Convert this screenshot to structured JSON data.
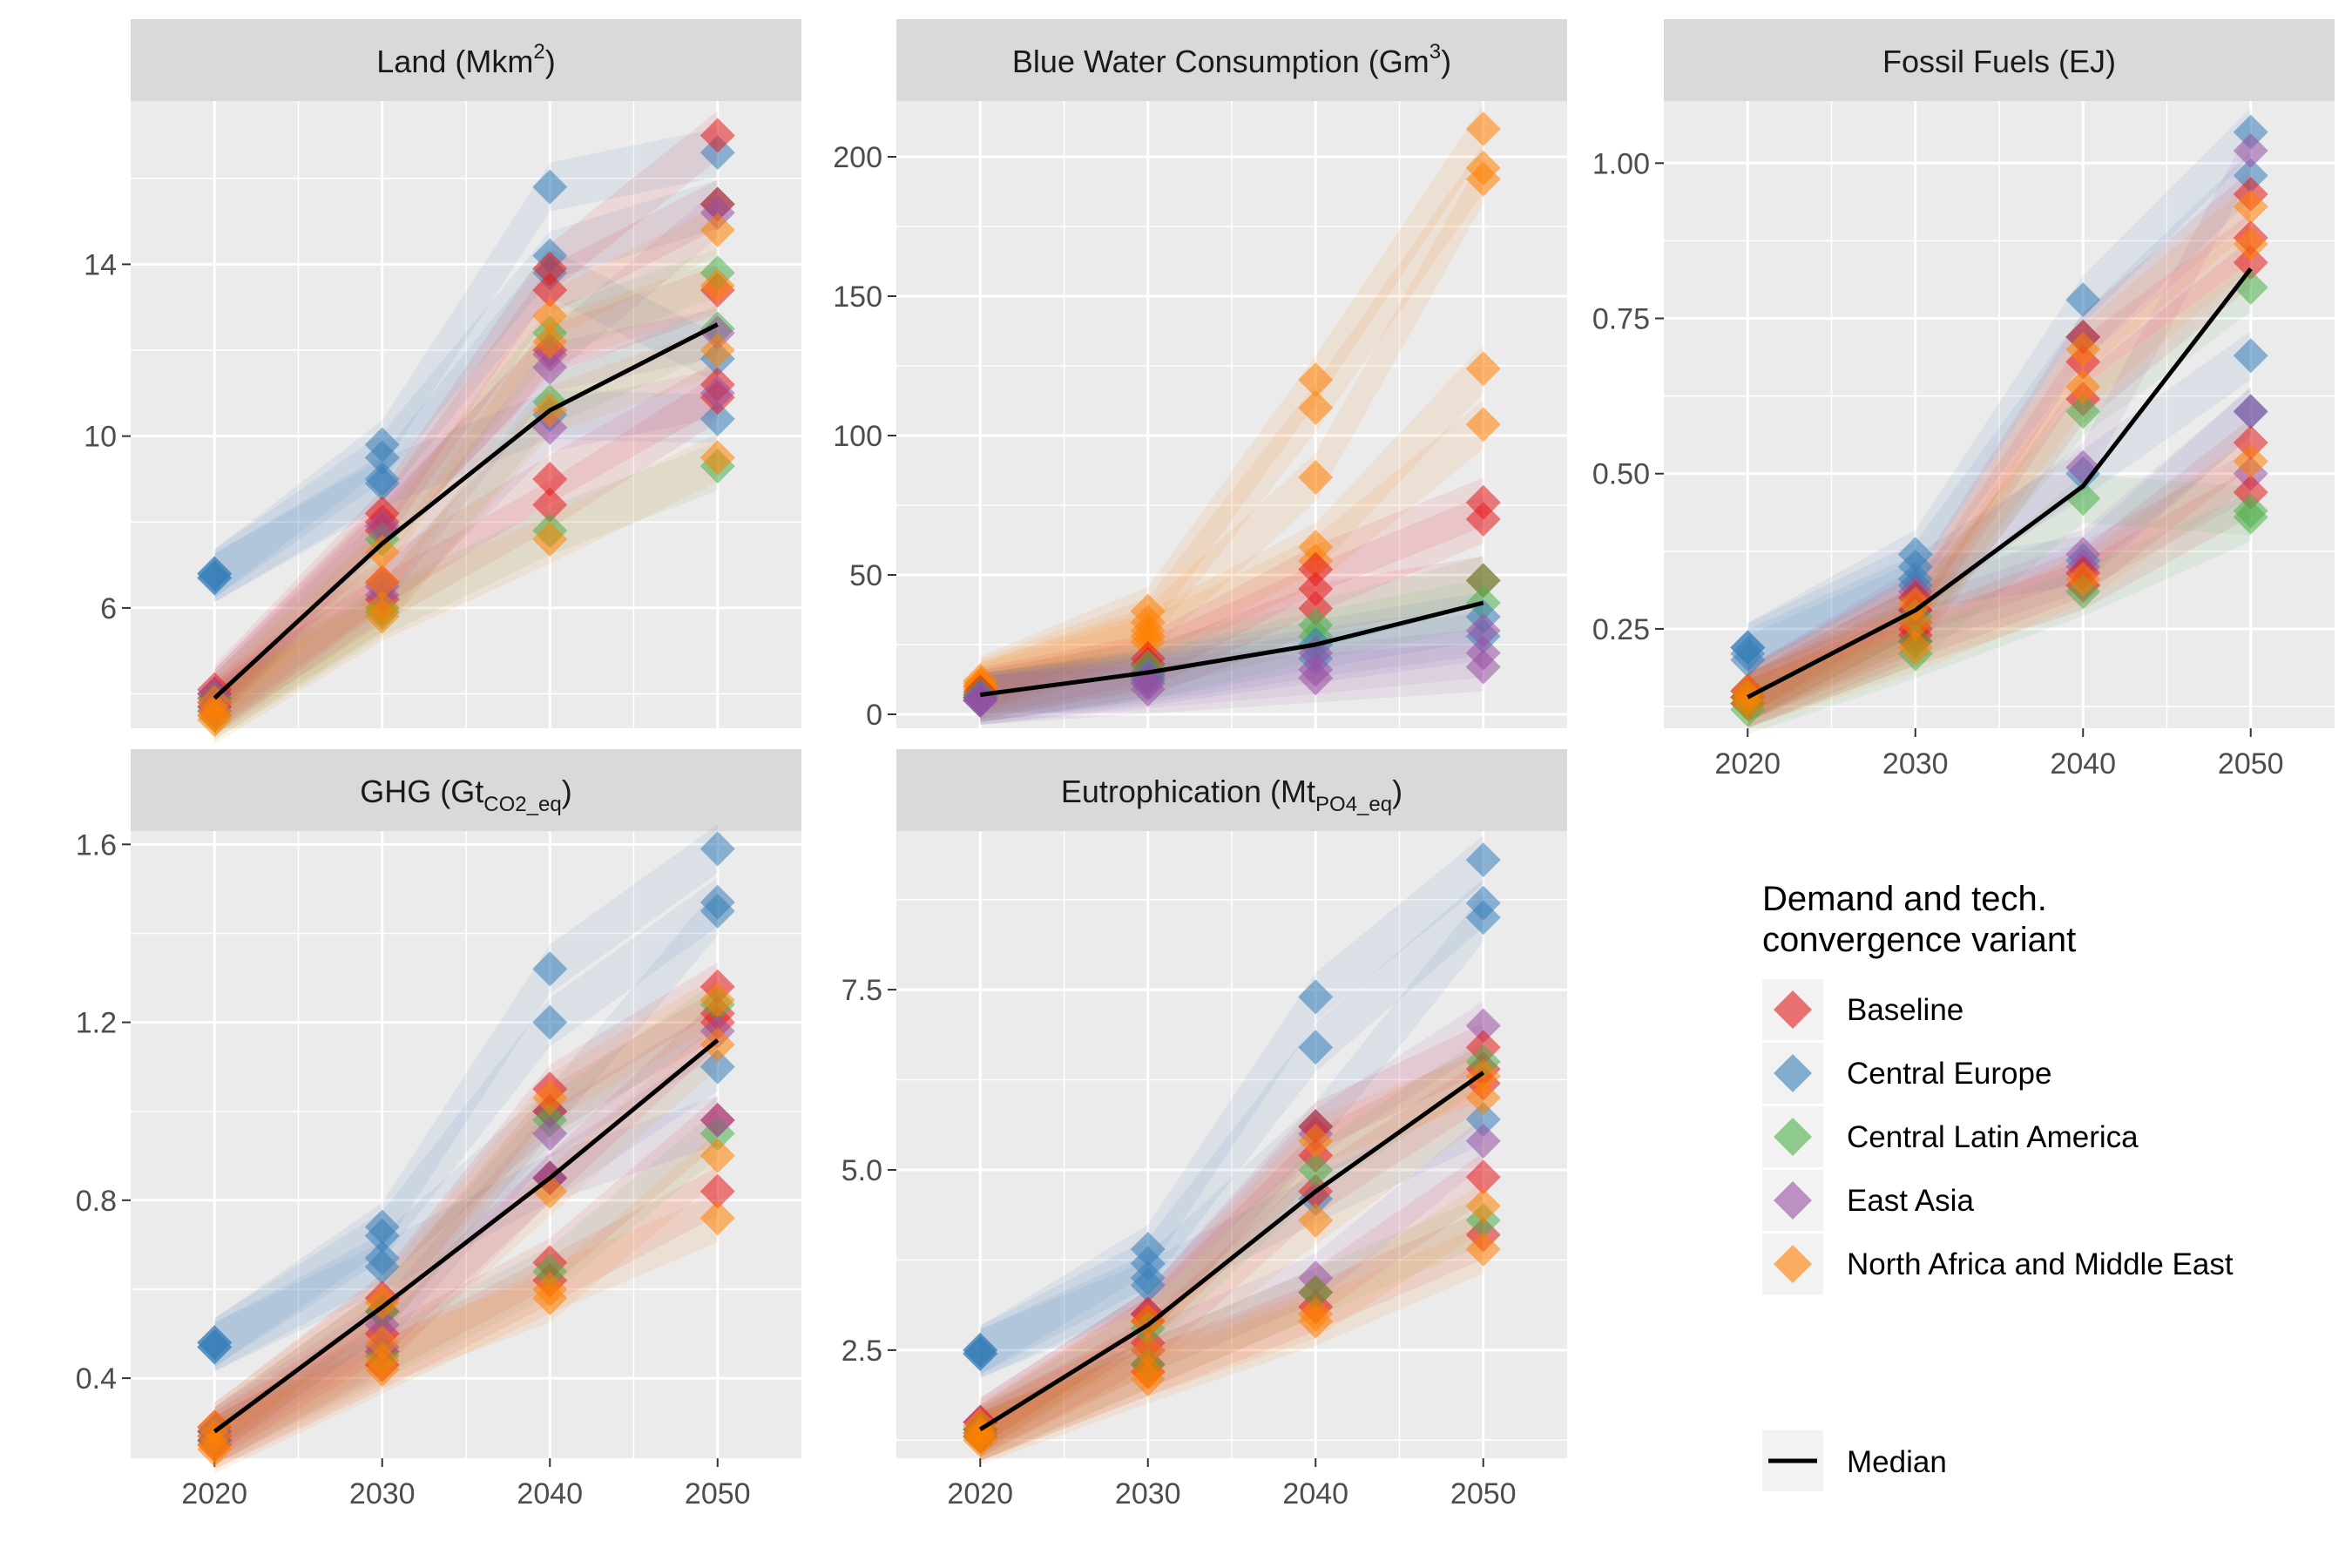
{
  "colors": {
    "Baseline": "#E41A1C",
    "Central Europe": "#377EB8",
    "Central Latin America": "#4DAF4A",
    "East Asia": "#984EA3",
    "North Africa and Middle East": "#FF7F00",
    "median": "#000000",
    "panel_bg": "#EBEBEB",
    "strip_bg": "#D9D9D9",
    "grid": "#FFFFFF",
    "axis_text": "#4D4D4D"
  },
  "legend": {
    "title_line1": "Demand and tech.",
    "title_line2": "convergence variant",
    "items": [
      "Baseline",
      "Central Europe",
      "Central Latin America",
      "East Asia",
      "North Africa and Middle East"
    ],
    "median_label": "Median"
  },
  "chart_data": [
    {
      "type": "line",
      "title": "Land (Mkm²)",
      "title_main": "Land (Mkm",
      "title_sup": "2",
      "title_tail": ")",
      "x": [
        2020,
        2030,
        2040,
        2050
      ],
      "ylim": [
        3.2,
        17.8
      ],
      "yticks": [
        6,
        10,
        14
      ],
      "ytick_labels": [
        "6",
        "10",
        "14"
      ],
      "median": [
        3.9,
        7.5,
        10.6,
        12.6
      ],
      "series": [
        {
          "variant": "Central Europe",
          "values": [
            6.8,
            9.8,
            15.8,
            16.6
          ]
        },
        {
          "variant": "Central Europe",
          "values": [
            6.8,
            9.5,
            14.2,
            15.4
          ]
        },
        {
          "variant": "Central Europe",
          "values": [
            6.7,
            9.0,
            13.8,
            11.8
          ]
        },
        {
          "variant": "Central Europe",
          "values": [
            6.7,
            8.9,
            10.5,
            10.4
          ]
        },
        {
          "variant": "Baseline",
          "values": [
            4.1,
            8.2,
            13.9,
            17.0
          ]
        },
        {
          "variant": "Baseline",
          "values": [
            4.0,
            8.0,
            13.4,
            15.4
          ]
        },
        {
          "variant": "Baseline",
          "values": [
            3.9,
            7.8,
            12.0,
            13.4
          ]
        },
        {
          "variant": "Baseline",
          "values": [
            3.8,
            6.6,
            9.0,
            11.2
          ]
        },
        {
          "variant": "Baseline",
          "values": [
            3.7,
            6.2,
            8.4,
            10.9
          ]
        },
        {
          "variant": "Central Latin America",
          "values": [
            3.9,
            7.6,
            12.4,
            13.8
          ]
        },
        {
          "variant": "Central Latin America",
          "values": [
            3.6,
            6.0,
            10.8,
            12.5
          ]
        },
        {
          "variant": "Central Latin America",
          "values": [
            3.5,
            5.9,
            7.8,
            9.3
          ]
        },
        {
          "variant": "East Asia",
          "values": [
            4.0,
            7.9,
            11.9,
            15.2
          ]
        },
        {
          "variant": "East Asia",
          "values": [
            3.7,
            6.5,
            11.6,
            12.4
          ]
        },
        {
          "variant": "East Asia",
          "values": [
            3.6,
            6.3,
            10.2,
            11.0
          ]
        },
        {
          "variant": "North Africa and Middle East",
          "values": [
            3.8,
            7.3,
            12.8,
            14.8
          ]
        },
        {
          "variant": "North Africa and Middle East",
          "values": [
            3.6,
            6.6,
            12.2,
            13.5
          ]
        },
        {
          "variant": "North Africa and Middle East",
          "values": [
            3.5,
            6.0,
            10.6,
            12.0
          ]
        },
        {
          "variant": "North Africa and Middle East",
          "values": [
            3.4,
            5.8,
            7.6,
            9.5
          ]
        }
      ]
    },
    {
      "type": "line",
      "title": "Blue Water Consumption (Gm³)",
      "title_main": "Blue Water Consumption (Gm",
      "title_sup": "3",
      "title_tail": ")",
      "x": [
        2020,
        2030,
        2040,
        2050
      ],
      "ylim": [
        -5,
        220
      ],
      "yticks": [
        0,
        50,
        100,
        150,
        200
      ],
      "ytick_labels": [
        "0",
        "50",
        "100",
        "150",
        "200"
      ],
      "median": [
        7,
        15,
        25,
        40
      ],
      "series": [
        {
          "variant": "North Africa and Middle East",
          "values": [
            12,
            37,
            120,
            210
          ]
        },
        {
          "variant": "North Africa and Middle East",
          "values": [
            11,
            33,
            110,
            196
          ]
        },
        {
          "variant": "North Africa and Middle East",
          "values": [
            10,
            30,
            85,
            192
          ]
        },
        {
          "variant": "North Africa and Middle East",
          "values": [
            10,
            28,
            60,
            124
          ]
        },
        {
          "variant": "North Africa and Middle East",
          "values": [
            9,
            26,
            55,
            104
          ]
        },
        {
          "variant": "Baseline",
          "values": [
            8,
            20,
            52,
            76
          ]
        },
        {
          "variant": "Baseline",
          "values": [
            7,
            18,
            45,
            70
          ]
        },
        {
          "variant": "Baseline",
          "values": [
            6,
            15,
            38,
            48
          ]
        },
        {
          "variant": "Central Latin America",
          "values": [
            7,
            17,
            32,
            48
          ]
        },
        {
          "variant": "Central Latin America",
          "values": [
            6,
            14,
            28,
            40
          ]
        },
        {
          "variant": "Central Europe",
          "values": [
            6,
            14,
            25,
            35
          ]
        },
        {
          "variant": "Central Europe",
          "values": [
            5,
            12,
            20,
            28
          ]
        },
        {
          "variant": "East Asia",
          "values": [
            6,
            13,
            22,
            30
          ]
        },
        {
          "variant": "East Asia",
          "values": [
            5,
            11,
            16,
            22
          ]
        },
        {
          "variant": "East Asia",
          "values": [
            5,
            9,
            13,
            17
          ]
        }
      ]
    },
    {
      "type": "line",
      "title": "Fossil Fuels (EJ)",
      "title_main": "Fossil Fuels (EJ)",
      "title_sup": "",
      "title_tail": "",
      "x": [
        2020,
        2030,
        2040,
        2050
      ],
      "ylim": [
        0.09,
        1.1
      ],
      "yticks": [
        0.25,
        0.5,
        0.75,
        1.0
      ],
      "ytick_labels": [
        "0.25",
        "0.50",
        "0.75",
        "1.00"
      ],
      "median": [
        0.14,
        0.28,
        0.48,
        0.83
      ],
      "series": [
        {
          "variant": "Central Europe",
          "values": [
            0.22,
            0.37,
            0.78,
            1.05
          ]
        },
        {
          "variant": "Central Europe",
          "values": [
            0.22,
            0.35,
            0.72,
            0.98
          ]
        },
        {
          "variant": "Central Europe",
          "values": [
            0.21,
            0.33,
            0.5,
            0.69
          ]
        },
        {
          "variant": "Central Europe",
          "values": [
            0.2,
            0.32,
            0.36,
            0.6
          ]
        },
        {
          "variant": "East Asia",
          "values": [
            0.15,
            0.31,
            0.51,
            1.02
          ]
        },
        {
          "variant": "East Asia",
          "values": [
            0.14,
            0.28,
            0.37,
            0.6
          ]
        },
        {
          "variant": "East Asia",
          "values": [
            0.14,
            0.26,
            0.35,
            0.5
          ]
        },
        {
          "variant": "Baseline",
          "values": [
            0.15,
            0.3,
            0.72,
            0.95
          ]
        },
        {
          "variant": "Baseline",
          "values": [
            0.14,
            0.28,
            0.68,
            0.88
          ]
        },
        {
          "variant": "Baseline",
          "values": [
            0.14,
            0.25,
            0.62,
            0.84
          ]
        },
        {
          "variant": "Baseline",
          "values": [
            0.13,
            0.24,
            0.34,
            0.55
          ]
        },
        {
          "variant": "Baseline",
          "values": [
            0.13,
            0.23,
            0.32,
            0.47
          ]
        },
        {
          "variant": "Central Latin America",
          "values": [
            0.14,
            0.27,
            0.6,
            0.8
          ]
        },
        {
          "variant": "Central Latin America",
          "values": [
            0.13,
            0.23,
            0.46,
            0.44
          ]
        },
        {
          "variant": "Central Latin America",
          "values": [
            0.12,
            0.21,
            0.31,
            0.43
          ]
        },
        {
          "variant": "North Africa and Middle East",
          "values": [
            0.15,
            0.29,
            0.7,
            0.93
          ]
        },
        {
          "variant": "North Africa and Middle East",
          "values": [
            0.14,
            0.26,
            0.64,
            0.87
          ]
        },
        {
          "variant": "North Africa and Middle East",
          "values": [
            0.13,
            0.22,
            0.33,
            0.52
          ]
        }
      ]
    },
    {
      "type": "line",
      "title": "GHG (Gt CO2_eq)",
      "title_main": "GHG (Gt",
      "title_sub": "CO2_eq",
      "title_tail": ")",
      "x": [
        2020,
        2030,
        2040,
        2050
      ],
      "ylim": [
        0.22,
        1.63
      ],
      "yticks": [
        0.4,
        0.8,
        1.2,
        1.6
      ],
      "ytick_labels": [
        "0.4",
        "0.8",
        "1.2",
        "1.6"
      ],
      "median": [
        0.28,
        0.56,
        0.85,
        1.16
      ],
      "series": [
        {
          "variant": "Central Europe",
          "values": [
            0.48,
            0.74,
            1.32,
            1.59
          ]
        },
        {
          "variant": "Central Europe",
          "values": [
            0.48,
            0.72,
            1.2,
            1.47
          ]
        },
        {
          "variant": "Central Europe",
          "values": [
            0.47,
            0.67,
            1.0,
            1.45
          ]
        },
        {
          "variant": "Central Europe",
          "values": [
            0.47,
            0.65,
            0.85,
            1.1
          ]
        },
        {
          "variant": "Baseline",
          "values": [
            0.29,
            0.58,
            1.05,
            1.28
          ]
        },
        {
          "variant": "Baseline",
          "values": [
            0.28,
            0.55,
            1.0,
            1.22
          ]
        },
        {
          "variant": "Baseline",
          "values": [
            0.27,
            0.5,
            0.85,
            1.2
          ]
        },
        {
          "variant": "Baseline",
          "values": [
            0.26,
            0.46,
            0.66,
            0.98
          ]
        },
        {
          "variant": "Baseline",
          "values": [
            0.25,
            0.43,
            0.62,
            0.82
          ]
        },
        {
          "variant": "Central Latin America",
          "values": [
            0.28,
            0.55,
            0.98,
            1.24
          ]
        },
        {
          "variant": "Central Latin America",
          "values": [
            0.26,
            0.45,
            0.64,
            0.95
          ]
        },
        {
          "variant": "East Asia",
          "values": [
            0.28,
            0.52,
            0.95,
            1.18
          ]
        },
        {
          "variant": "East Asia",
          "values": [
            0.26,
            0.47,
            0.85,
            0.98
          ]
        },
        {
          "variant": "North Africa and Middle East",
          "values": [
            0.29,
            0.57,
            1.03,
            1.25
          ]
        },
        {
          "variant": "North Africa and Middle East",
          "values": [
            0.27,
            0.48,
            0.82,
            1.15
          ]
        },
        {
          "variant": "North Africa and Middle East",
          "values": [
            0.25,
            0.44,
            0.58,
            0.9
          ]
        },
        {
          "variant": "North Africa and Middle East",
          "values": [
            0.24,
            0.42,
            0.6,
            0.76
          ]
        }
      ]
    },
    {
      "type": "line",
      "title": "Eutrophication (Mt PO4_eq)",
      "title_main": "Eutrophication (Mt",
      "title_sub": "PO4_eq",
      "title_tail": ")",
      "x": [
        2020,
        2030,
        2040,
        2050
      ],
      "ylim": [
        1.0,
        9.7
      ],
      "yticks": [
        2.5,
        5.0,
        7.5
      ],
      "ytick_labels": [
        "2.5",
        "5.0",
        "7.5"
      ],
      "median": [
        1.4,
        2.85,
        4.7,
        6.35
      ],
      "series": [
        {
          "variant": "Central Europe",
          "values": [
            2.5,
            3.9,
            7.4,
            9.3
          ]
        },
        {
          "variant": "Central Europe",
          "values": [
            2.5,
            3.7,
            6.7,
            8.7
          ]
        },
        {
          "variant": "Central Europe",
          "values": [
            2.45,
            3.5,
            5.6,
            8.5
          ]
        },
        {
          "variant": "Central Europe",
          "values": [
            2.45,
            3.4,
            4.6,
            5.7
          ]
        },
        {
          "variant": "East Asia",
          "values": [
            1.5,
            3.0,
            5.5,
            7.0
          ]
        },
        {
          "variant": "East Asia",
          "values": [
            1.4,
            2.5,
            3.5,
            5.4
          ]
        },
        {
          "variant": "Baseline",
          "values": [
            1.5,
            3.0,
            5.6,
            6.7
          ]
        },
        {
          "variant": "Baseline",
          "values": [
            1.4,
            2.9,
            5.2,
            6.4
          ]
        },
        {
          "variant": "Baseline",
          "values": [
            1.35,
            2.6,
            4.7,
            6.2
          ]
        },
        {
          "variant": "Baseline",
          "values": [
            1.3,
            2.3,
            3.3,
            4.9
          ]
        },
        {
          "variant": "Baseline",
          "values": [
            1.3,
            2.2,
            3.1,
            4.1
          ]
        },
        {
          "variant": "Central Latin America",
          "values": [
            1.4,
            2.8,
            5.0,
            6.5
          ]
        },
        {
          "variant": "Central Latin America",
          "values": [
            1.3,
            2.3,
            3.3,
            4.3
          ]
        },
        {
          "variant": "North Africa and Middle East",
          "values": [
            1.45,
            2.9,
            5.4,
            6.3
          ]
        },
        {
          "variant": "North Africa and Middle East",
          "values": [
            1.35,
            2.5,
            4.3,
            6.0
          ]
        },
        {
          "variant": "North Africa and Middle East",
          "values": [
            1.3,
            2.2,
            3.0,
            4.5
          ]
        },
        {
          "variant": "North Africa and Middle East",
          "values": [
            1.25,
            2.1,
            2.9,
            3.9
          ]
        }
      ]
    }
  ]
}
